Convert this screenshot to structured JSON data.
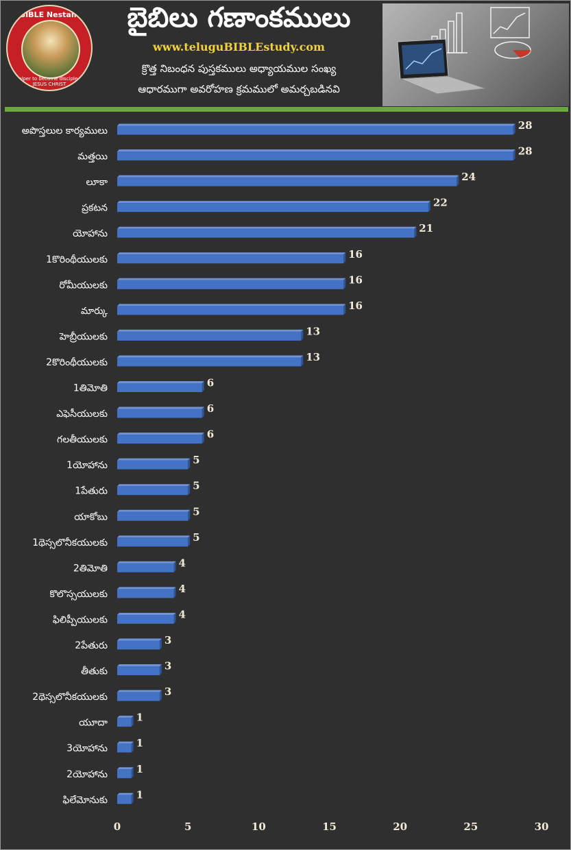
{
  "header": {
    "title": "బైబిలు గణాంకములు",
    "website": "www.teluguBIBLEstudy.com",
    "subtitle_line1": "క్రొత్త నిబంధన పుస్తకములు అధ్యాయముల సంఖ్య",
    "subtitle_line2": "ఆధారముగా అవరోహణ క్రమములో అమర్చబడినవి",
    "logo_text": "BIBLE Nestam",
    "logo_subtext": "Helper to become disciple of JESUS CHRIST"
  },
  "colors": {
    "background": "#2f2f2f",
    "bar_front": "#4472c4",
    "bar_top": "#6f93d6",
    "bar_side": "#2f5597",
    "accent_rule": "#6da83f",
    "website": "#f2d23c"
  },
  "chart_data": {
    "type": "bar",
    "orientation": "horizontal",
    "categories": [
      "అపొస్తలుల కార్యములు",
      "మత్తయి",
      "లూకా",
      "ప్రకటన",
      "యోహాను",
      "1కొరింథీయులకు",
      "రోమీయులకు",
      "మార్కు",
      "హెబ్రీయులకు",
      "2కొరింథీయులకు",
      "1తిమోతి",
      "ఎఫెసీయులకు",
      "గలతీయులకు",
      "1యోహాను",
      "1పేతురు",
      "యాకోబు",
      "1థెస్సలొనీకయులకు",
      "2తిమోతి",
      "కొలొస్సయులకు",
      "ఫిలిప్పీయులకు",
      "2పేతురు",
      "తీతుకు",
      "2థెస్సలొనీకయులకు",
      "యూదా",
      "3యోహాను",
      "2యోహాను",
      "ఫిలేమోనుకు"
    ],
    "values": [
      28,
      28,
      24,
      22,
      21,
      16,
      16,
      16,
      13,
      13,
      6,
      6,
      6,
      5,
      5,
      5,
      5,
      4,
      4,
      4,
      3,
      3,
      3,
      1,
      1,
      1,
      1
    ],
    "xlim": [
      0,
      30
    ],
    "xticks": [
      "0",
      "5",
      "10",
      "15",
      "20",
      "25",
      "30"
    ],
    "grid": false,
    "legend": "none",
    "data_labels": true
  }
}
